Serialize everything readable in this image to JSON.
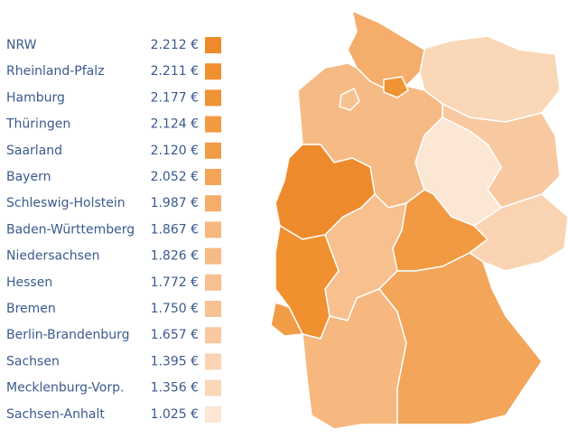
{
  "legend": [
    {
      "name": "NRW",
      "amount": "2.212 €",
      "color": "#ef8a2c"
    },
    {
      "name": "Rheinland-Pfalz",
      "amount": "2.211 €",
      "color": "#f0902f"
    },
    {
      "name": "Hamburg",
      "amount": "2.177 €",
      "color": "#f09335"
    },
    {
      "name": "Thüringen",
      "amount": "2.124 €",
      "color": "#f19a42"
    },
    {
      "name": "Saarland",
      "amount": "2.120 €",
      "color": "#f19c46"
    },
    {
      "name": "Bayern",
      "amount": "2.052 €",
      "color": "#f3a55a"
    },
    {
      "name": "Schleswig-Holstein",
      "amount": "1.987 €",
      "color": "#f4ad6b"
    },
    {
      "name": "Baden-Württemberg",
      "amount": "1.867 €",
      "color": "#f6b87f"
    },
    {
      "name": "Niedersachsen",
      "amount": "1.826 €",
      "color": "#f6bb84"
    },
    {
      "name": "Hessen",
      "amount": "1.772 €",
      "color": "#f7c08e"
    },
    {
      "name": "Bremen",
      "amount": "1.750 €",
      "color": "#f7c292"
    },
    {
      "name": "Berlin-Brandenburg",
      "amount": "1.657 €",
      "color": "#f8c9a0"
    },
    {
      "name": "Sachsen",
      "amount": "1.395 €",
      "color": "#fad4b2"
    },
    {
      "name": "Mecklenburg-Vorp.",
      "amount": "1.356 €",
      "color": "#fad7b7"
    },
    {
      "name": "Sachsen-Anhalt",
      "amount": "1.025 €",
      "color": "#fce6d4"
    }
  ]
}
